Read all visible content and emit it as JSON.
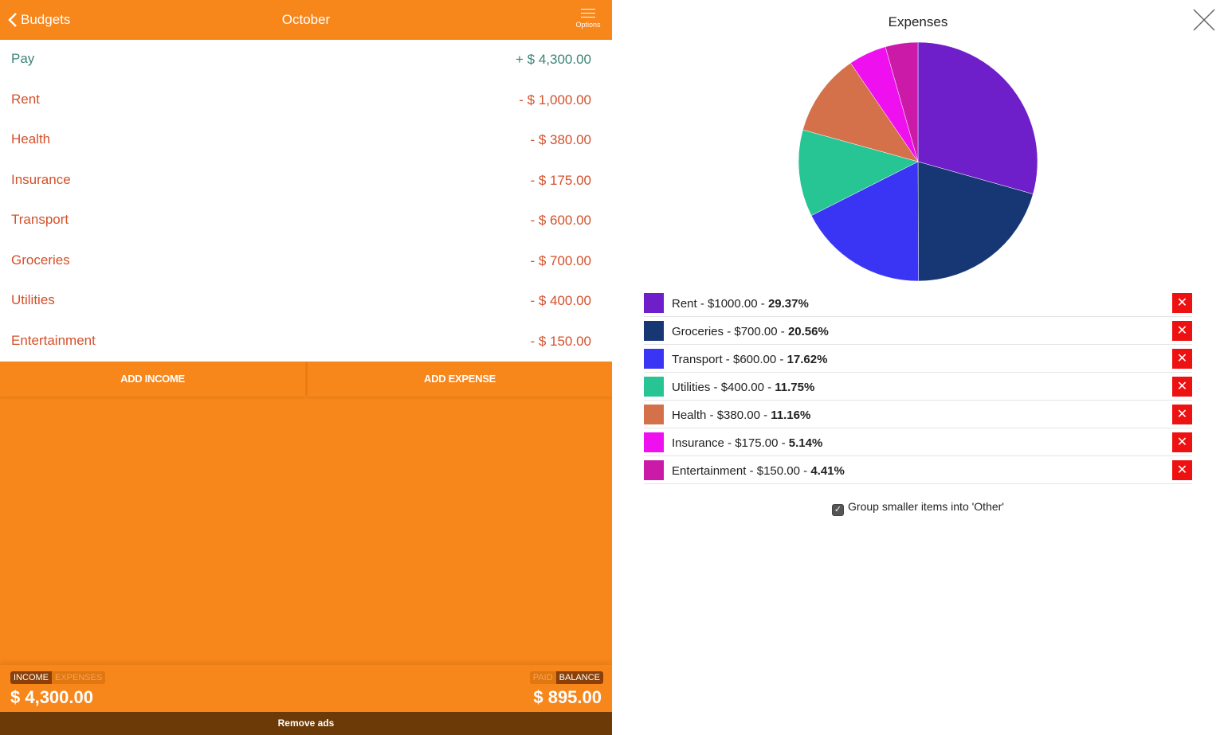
{
  "header": {
    "back_label": "Budgets",
    "title": "October",
    "options_label": "Options"
  },
  "items": [
    {
      "name": "Pay",
      "amount": "+ $ 4,300.00",
      "kind": "income"
    },
    {
      "name": "Rent",
      "amount": "- $ 1,000.00",
      "kind": "expense"
    },
    {
      "name": "Health",
      "amount": "- $ 380.00",
      "kind": "expense"
    },
    {
      "name": "Insurance",
      "amount": "- $ 175.00",
      "kind": "expense"
    },
    {
      "name": "Transport",
      "amount": "- $ 600.00",
      "kind": "expense"
    },
    {
      "name": "Groceries",
      "amount": "- $ 700.00",
      "kind": "expense"
    },
    {
      "name": "Utilities",
      "amount": "- $ 400.00",
      "kind": "expense"
    },
    {
      "name": "Entertainment",
      "amount": "- $ 150.00",
      "kind": "expense"
    }
  ],
  "actions": {
    "add_income": "ADD INCOME",
    "add_expense": "ADD EXPENSE"
  },
  "footer": {
    "left_toggle": [
      "INCOME",
      "EXPENSES"
    ],
    "left_total": "$ 4,300.00",
    "right_toggle": [
      "PAID",
      "BALANCE"
    ],
    "right_total": "$ 895.00",
    "remove_ads": "Remove ads"
  },
  "chart_panel": {
    "group_label": "Group smaller items into 'Other'",
    "group_checked": true
  },
  "chart_data": {
    "type": "pie",
    "title": "Expenses",
    "slices": [
      {
        "label": "Rent",
        "amount": "$1000.00",
        "value": 1000,
        "percent": "29.37%",
        "color": "#6e1fc9"
      },
      {
        "label": "Groceries",
        "amount": "$700.00",
        "value": 700,
        "percent": "20.56%",
        "color": "#173674"
      },
      {
        "label": "Transport",
        "amount": "$600.00",
        "value": 600,
        "percent": "17.62%",
        "color": "#3a35f5"
      },
      {
        "label": "Utilities",
        "amount": "$400.00",
        "value": 400,
        "percent": "11.75%",
        "color": "#27c494"
      },
      {
        "label": "Health",
        "amount": "$380.00",
        "value": 380,
        "percent": "11.16%",
        "color": "#d4714a"
      },
      {
        "label": "Insurance",
        "amount": "$175.00",
        "value": 175,
        "percent": "5.14%",
        "color": "#ef10f0"
      },
      {
        "label": "Entertainment",
        "amount": "$150.00",
        "value": 150,
        "percent": "4.41%",
        "color": "#cc1aa8"
      }
    ]
  }
}
